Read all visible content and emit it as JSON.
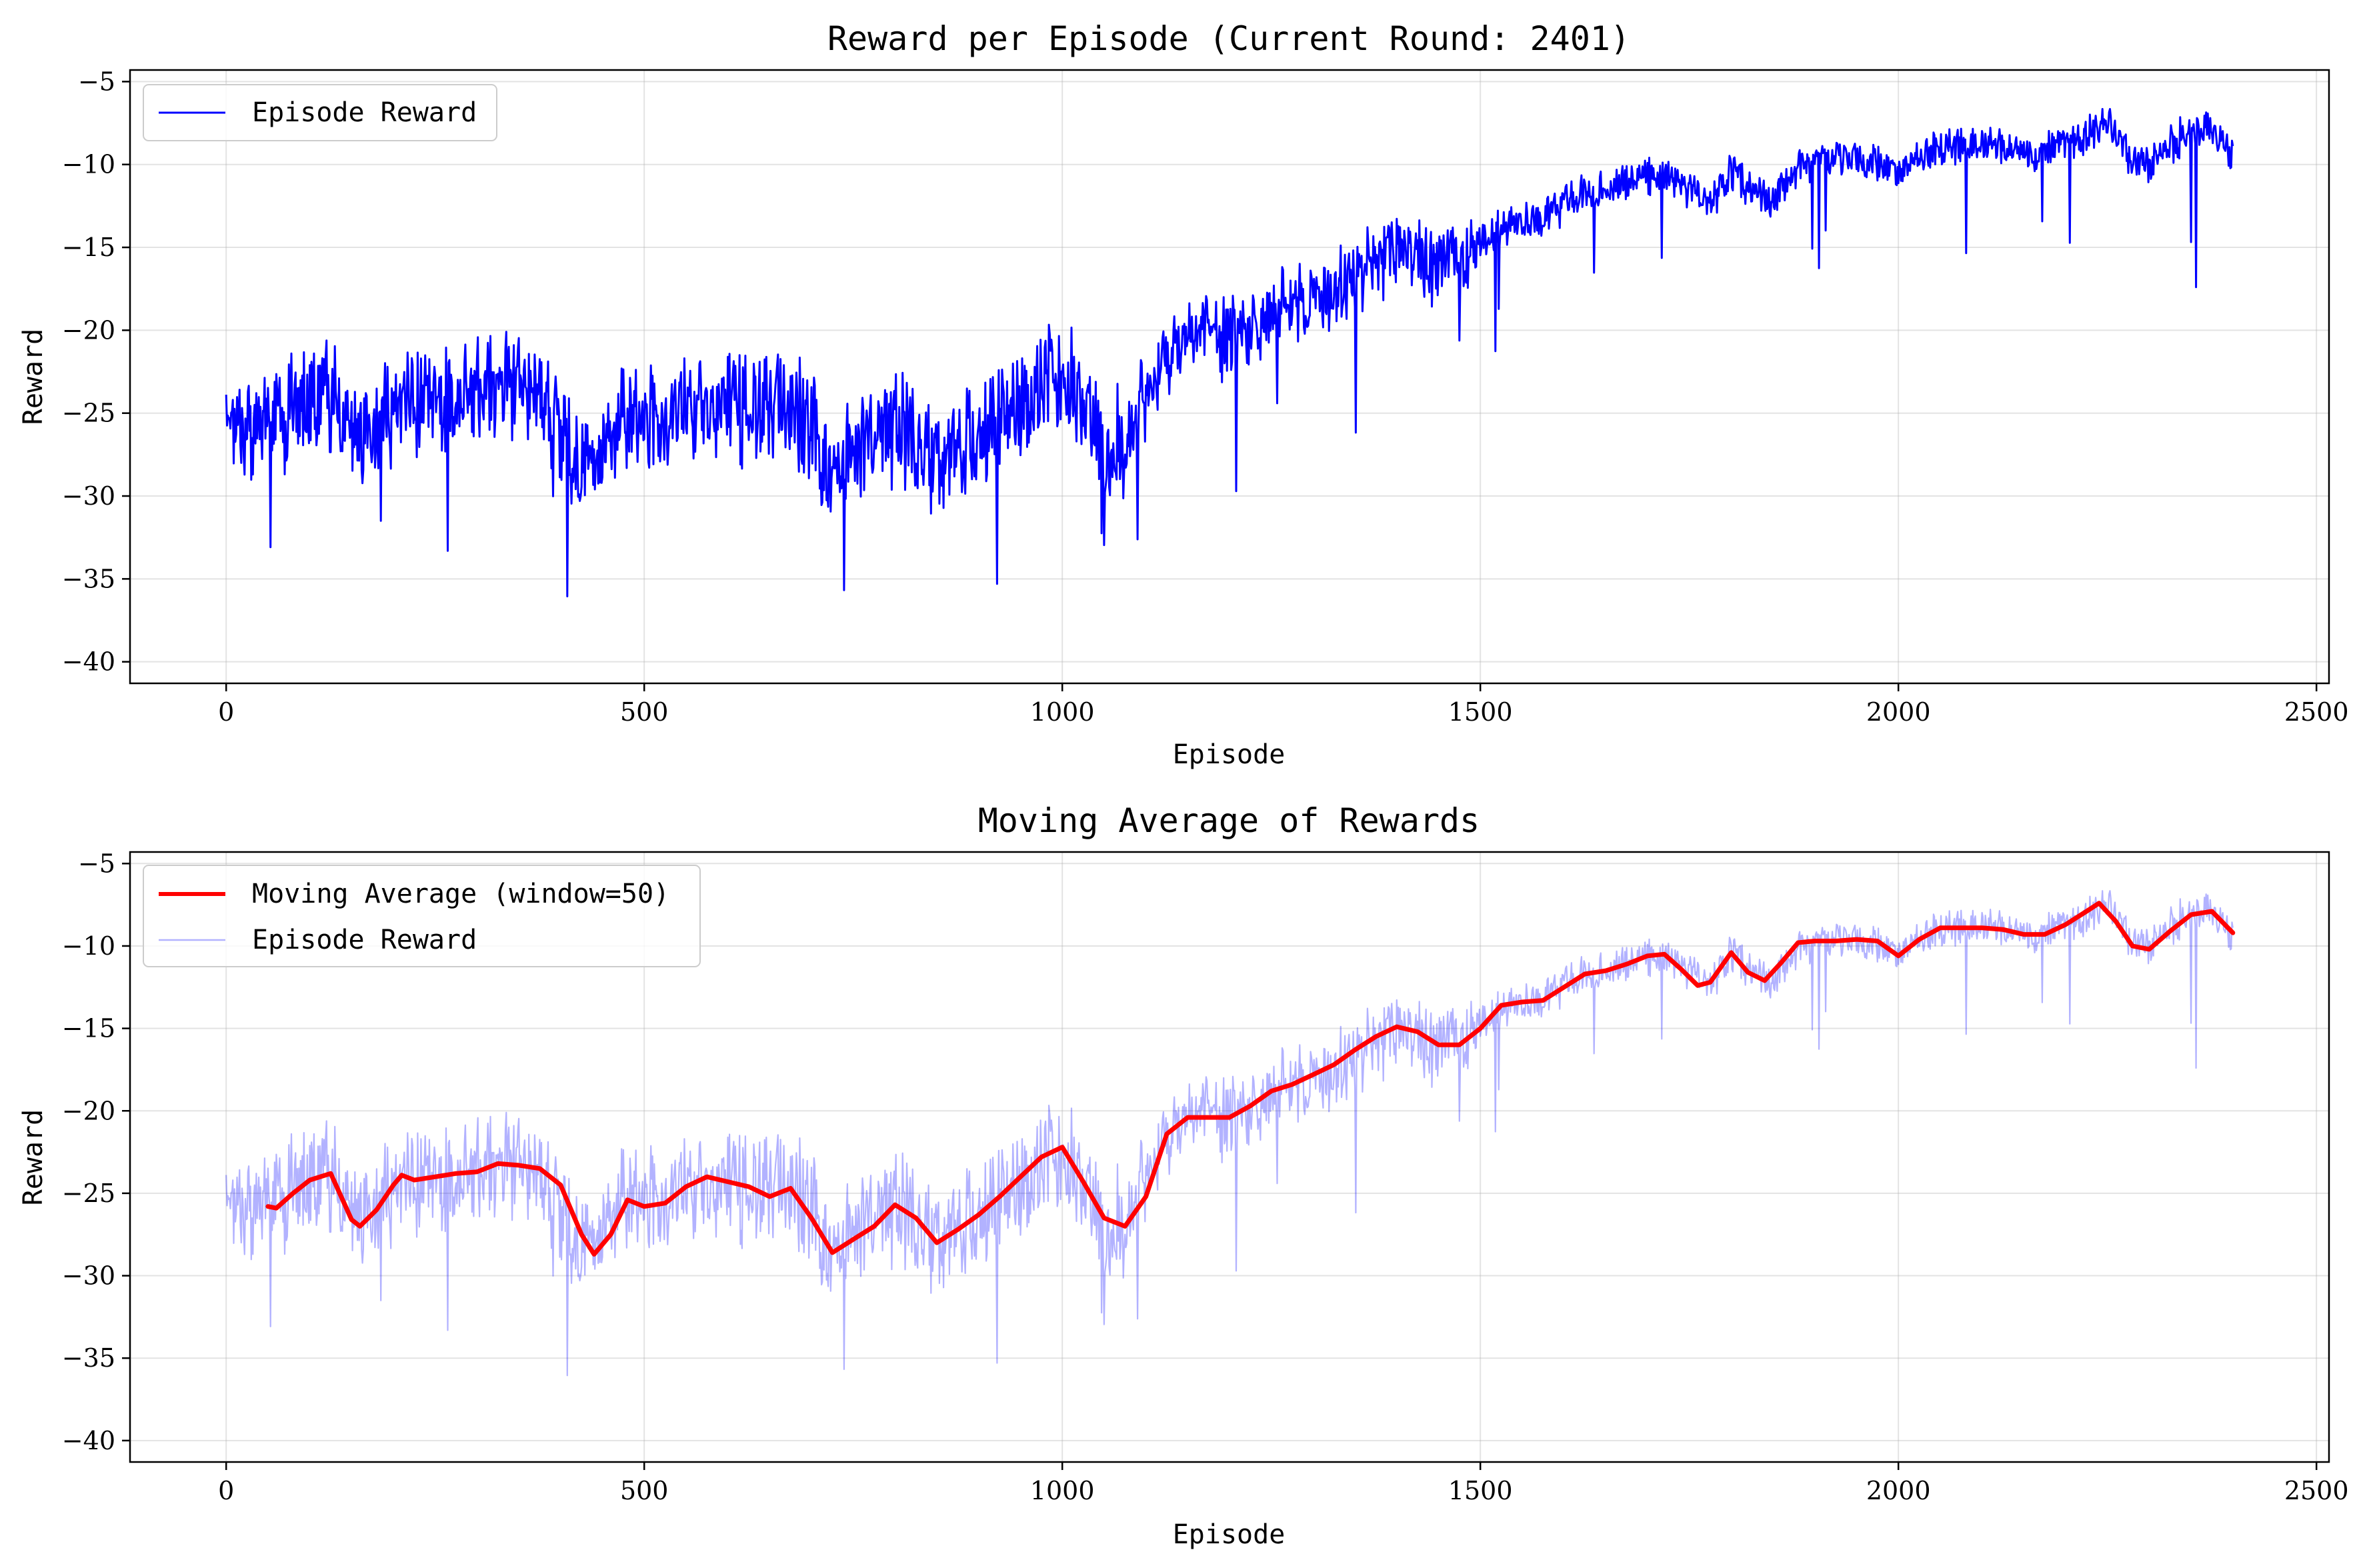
{
  "chart_data": [
    {
      "type": "line",
      "title": "Reward per Episode (Current Round: 2401)",
      "xlabel": "Episode",
      "ylabel": "Reward",
      "xlim": [
        -115,
        2515
      ],
      "ylim": [
        -41.3,
        -4.3
      ],
      "xticks": [
        0,
        500,
        1000,
        1500,
        2000,
        2500
      ],
      "yticks": [
        -40,
        -35,
        -30,
        -25,
        -20,
        -15,
        -10,
        -5
      ],
      "grid": true,
      "legend_position": "upper-left",
      "colors": {
        "episode": "#0000ff"
      },
      "legend": [
        {
          "label": "Episode Reward",
          "color": "#0000ff"
        }
      ],
      "series": [
        {
          "name": "Episode Reward",
          "color": "#0000ff",
          "x": [
            0,
            25,
            50,
            75,
            100,
            125,
            150,
            175,
            200,
            225,
            250,
            275,
            300,
            325,
            350,
            375,
            400,
            425,
            450,
            475,
            500,
            525,
            550,
            575,
            600,
            625,
            650,
            675,
            700,
            725,
            750,
            775,
            800,
            825,
            850,
            875,
            900,
            925,
            950,
            975,
            1000,
            1025,
            1050,
            1075,
            1100,
            1125,
            1150,
            1175,
            1200,
            1225,
            1250,
            1275,
            1300,
            1325,
            1350,
            1375,
            1400,
            1425,
            1450,
            1475,
            1500,
            1525,
            1550,
            1575,
            1600,
            1625,
            1650,
            1675,
            1700,
            1725,
            1750,
            1775,
            1800,
            1825,
            1850,
            1875,
            1900,
            1925,
            1950,
            1975,
            2000,
            2025,
            2050,
            2075,
            2100,
            2125,
            2150,
            2175,
            2200,
            2225,
            2250,
            2275,
            2300,
            2325,
            2350,
            2375,
            2400
          ],
          "values": [
            -26,
            -26.5,
            -25.5,
            -25,
            -24,
            -23.5,
            -27,
            -26.5,
            -25,
            -24,
            -24.2,
            -23.8,
            -24,
            -23.5,
            -23.2,
            -23.6,
            -26,
            -28.5,
            -27.5,
            -25.5,
            -25.8,
            -25.2,
            -24.5,
            -24.2,
            -24,
            -24.8,
            -25,
            -24.6,
            -26,
            -28.5,
            -27.5,
            -27,
            -25.8,
            -26.5,
            -28,
            -27.2,
            -26.5,
            -25.5,
            -24.5,
            -23.5,
            -22.5,
            -24.5,
            -26.8,
            -27,
            -24,
            -21.5,
            -20.5,
            -20.4,
            -20.5,
            -20,
            -19,
            -18.5,
            -18,
            -17.5,
            -16.5,
            -15.8,
            -15,
            -15.3,
            -16,
            -16.2,
            -15,
            -13.6,
            -13.4,
            -13.2,
            -12.5,
            -11.6,
            -11.5,
            -11,
            -10.6,
            -10.5,
            -11.5,
            -12.5,
            -10.5,
            -11.5,
            -12,
            -10.6,
            -9.8,
            -9.7,
            -9.6,
            -9.7,
            -10.5,
            -9.4,
            -8.9,
            -8.9,
            -8.9,
            -9,
            -9.2,
            -9.3,
            -8.8,
            -8.2,
            -7.4,
            -9.5,
            -10,
            -8.8,
            -8,
            -7.9,
            -9.2
          ]
        }
      ]
    },
    {
      "type": "line",
      "title": "Moving Average of Rewards",
      "xlabel": "Episode",
      "ylabel": "Reward",
      "xlim": [
        -115,
        2515
      ],
      "ylim": [
        -41.3,
        -4.3
      ],
      "xticks": [
        0,
        500,
        1000,
        1500,
        2000,
        2500
      ],
      "yticks": [
        -40,
        -35,
        -30,
        -25,
        -20,
        -15,
        -10,
        -5
      ],
      "grid": true,
      "legend_position": "upper-left",
      "colors": {
        "moving_average": "#ff0000",
        "episode_faded": "#0000ff"
      },
      "legend": [
        {
          "label": "Moving Average (window=50)",
          "color": "#ff0000"
        },
        {
          "label": "Episode Reward",
          "color": "#0000ff"
        }
      ],
      "series": [
        {
          "name": "Moving Average (window=50)",
          "color": "#ff0000",
          "x": [
            50,
            60,
            80,
            100,
            125,
            150,
            160,
            180,
            200,
            210,
            225,
            250,
            275,
            300,
            325,
            350,
            375,
            400,
            425,
            440,
            460,
            480,
            500,
            525,
            550,
            575,
            600,
            625,
            650,
            675,
            700,
            725,
            750,
            775,
            800,
            825,
            850,
            875,
            900,
            925,
            950,
            975,
            1000,
            1025,
            1050,
            1075,
            1100,
            1125,
            1150,
            1175,
            1200,
            1225,
            1250,
            1275,
            1300,
            1325,
            1350,
            1375,
            1400,
            1425,
            1450,
            1475,
            1500,
            1525,
            1550,
            1575,
            1600,
            1625,
            1650,
            1675,
            1700,
            1720,
            1740,
            1760,
            1775,
            1800,
            1820,
            1840,
            1860,
            1880,
            1900,
            1925,
            1950,
            1975,
            2000,
            2025,
            2050,
            2075,
            2100,
            2125,
            2150,
            2175,
            2200,
            2225,
            2240,
            2260,
            2280,
            2300,
            2325,
            2350,
            2375,
            2400
          ],
          "values": [
            -25.8,
            -25.9,
            -25,
            -24.2,
            -23.8,
            -26.6,
            -27,
            -26,
            -24.5,
            -23.9,
            -24.2,
            -24,
            -23.8,
            -23.7,
            -23.2,
            -23.3,
            -23.5,
            -24.5,
            -27.5,
            -28.7,
            -27.5,
            -25.4,
            -25.8,
            -25.6,
            -24.6,
            -24,
            -24.3,
            -24.6,
            -25.2,
            -24.7,
            -26.5,
            -28.6,
            -27.8,
            -27,
            -25.7,
            -26.5,
            -28,
            -27.2,
            -26.3,
            -25.2,
            -24,
            -22.8,
            -22.2,
            -24.3,
            -26.5,
            -27,
            -25.2,
            -21.4,
            -20.4,
            -20.4,
            -20.4,
            -19.7,
            -18.8,
            -18.4,
            -17.8,
            -17.2,
            -16.3,
            -15.5,
            -14.9,
            -15.2,
            -16,
            -16,
            -15,
            -13.6,
            -13.4,
            -13.3,
            -12.5,
            -11.7,
            -11.5,
            -11.1,
            -10.6,
            -10.5,
            -11.4,
            -12.4,
            -12.2,
            -10.4,
            -11.6,
            -12.1,
            -11,
            -9.8,
            -9.7,
            -9.7,
            -9.6,
            -9.7,
            -10.6,
            -9.6,
            -8.9,
            -8.9,
            -8.9,
            -9,
            -9.3,
            -9.3,
            -8.7,
            -7.9,
            -7.4,
            -8.5,
            -10,
            -10.2,
            -9.1,
            -8.1,
            -7.9,
            -9.2
          ]
        },
        {
          "name": "Episode Reward",
          "color": "#0000ff",
          "opacity": 0.3
        }
      ]
    }
  ]
}
